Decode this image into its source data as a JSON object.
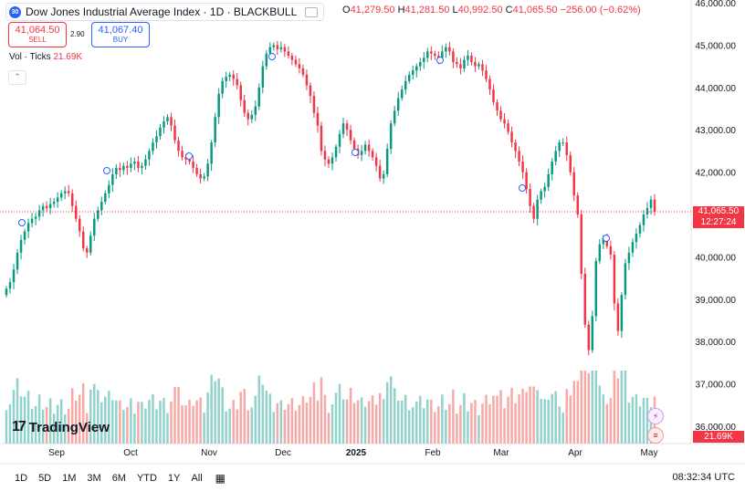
{
  "header": {
    "symbol_badge": "30",
    "title": "Dow Jones Industrial Average Index · 1D · BLACKBULL",
    "ohlc": {
      "o_label": "O",
      "o": "41,279.50",
      "h_label": "H",
      "h": "41,281.50",
      "l_label": "L",
      "l": "40,992.50",
      "c_label": "C",
      "c": "41,065.50",
      "change": "−256.00 (−0.62%)"
    }
  },
  "trade": {
    "sell_price": "41,064.50",
    "sell_label": "SELL",
    "spread": "2.90",
    "buy_price": "41,067.40",
    "buy_label": "BUY"
  },
  "volume_legend": {
    "label": "Vol · Ticks",
    "value": "21.69K"
  },
  "collapse_glyph": "⌃",
  "logo": {
    "mark": "17",
    "text": "TradingView"
  },
  "price_axis": {
    "ticks": [
      "46,000.00",
      "45,000.00",
      "44,000.00",
      "43,000.00",
      "42,000.00",
      "41,000.00",
      "40,000.00",
      "39,000.00",
      "38,000.00",
      "37,000.00",
      "36,000.00"
    ]
  },
  "last_price": {
    "price": "41,065.50",
    "countdown": "12:27:24"
  },
  "volume_tag": "21.69K",
  "time_axis": {
    "labels": [
      "Sep",
      "Oct",
      "Nov",
      "Dec",
      "2025",
      "Feb",
      "Mar",
      "Apr",
      "May"
    ]
  },
  "timeframes": [
    "1D",
    "5D",
    "1M",
    "3M",
    "6M",
    "YTD",
    "1Y",
    "All"
  ],
  "calendar_icon": "calendar-icon",
  "clock": "08:32:34 UTC",
  "colors": {
    "up": "#089981",
    "down": "#f23645",
    "vol_up": "#92d2cc",
    "vol_down": "#f7a9a7",
    "accent": "#2962ff"
  },
  "chart_data": {
    "type": "candlestick",
    "series": [
      {
        "name": "Dow Jones Industrial Average Index",
        "closes": [
          39250,
          39400,
          39700,
          40100,
          40400,
          40600,
          40800,
          40900,
          40950,
          41100,
          41200,
          41150,
          41250,
          41300,
          41400,
          41500,
          41550,
          41500,
          41200,
          40900,
          40600,
          40200,
          40100,
          40500,
          40900,
          41100,
          41300,
          41500,
          41700,
          41950,
          42100,
          42050,
          42150,
          42100,
          42200,
          42250,
          42100,
          42150,
          42300,
          42500,
          42700,
          42850,
          43050,
          43200,
          43300,
          43100,
          42750,
          42500,
          42350,
          42300,
          42250,
          42100,
          41950,
          41850,
          41900,
          42200,
          42700,
          43300,
          43850,
          44150,
          44250,
          44300,
          44200,
          44050,
          43700,
          43400,
          43250,
          43350,
          43550,
          44000,
          44500,
          44800,
          44950,
          45000,
          44900,
          44950,
          44850,
          44750,
          44650,
          44550,
          44450,
          44300,
          44050,
          43800,
          43400,
          43100,
          42500,
          42300,
          42200,
          42350,
          42600,
          42900,
          43150,
          43000,
          42750,
          42550,
          42400,
          42500,
          42650,
          42500,
          42350,
          42150,
          41850,
          41950,
          42550,
          43150,
          43450,
          43750,
          43950,
          44150,
          44300,
          44400,
          44500,
          44600,
          44700,
          44850,
          44800,
          44750,
          44700,
          44850,
          44950,
          44850,
          44600,
          44550,
          44450,
          44650,
          44750,
          44600,
          44500,
          44550,
          44400,
          44200,
          43950,
          43650,
          43450,
          43250,
          43150,
          42950,
          42700,
          42500,
          42250,
          42000,
          41600,
          41200,
          40900,
          41350,
          41550,
          41650,
          41950,
          42250,
          42500,
          42700,
          42700,
          42400,
          42000,
          41450,
          41000,
          39600,
          38400,
          37800,
          38600,
          39900,
          40300,
          40450,
          40250,
          40050,
          38900,
          38250,
          39100,
          39850,
          40100,
          40350,
          40550,
          40750,
          41000,
          41150,
          41350,
          41065.5
        ]
      }
    ],
    "ylim": [
      36000,
      46000
    ],
    "x_ticks": [
      "Sep",
      "Oct",
      "Nov",
      "Dec",
      "2025",
      "Feb",
      "Mar",
      "Apr",
      "May"
    ]
  }
}
